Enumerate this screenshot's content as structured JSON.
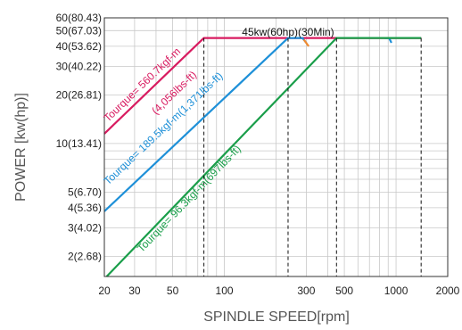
{
  "chart_data": {
    "type": "line",
    "xlabel": "SPINDLE SPEED[rpm]",
    "ylabel": "POWER [kw(hp)]",
    "x_scale": "log",
    "y_scale": "log",
    "xlim": [
      20,
      2000
    ],
    "ylim": [
      1.5,
      60
    ],
    "x_ticks": [
      {
        "value": 20,
        "label": "20"
      },
      {
        "value": 30,
        "label": "30"
      },
      {
        "value": 50,
        "label": "50"
      },
      {
        "value": 100,
        "label": "100"
      },
      {
        "value": 300,
        "label": "300"
      },
      {
        "value": 500,
        "label": "500"
      },
      {
        "value": 1000,
        "label": "1000"
      },
      {
        "value": 2000,
        "label": "2000"
      }
    ],
    "y_ticks": [
      {
        "value": 60,
        "label": "60(80.43)"
      },
      {
        "value": 50,
        "label": "50(67.03)"
      },
      {
        "value": 40,
        "label": "40(53.62)"
      },
      {
        "value": 30,
        "label": "30(40.22)"
      },
      {
        "value": 20,
        "label": "20(26.81)"
      },
      {
        "value": 10,
        "label": "10(13.41)"
      },
      {
        "value": 5,
        "label": "5(6.70)"
      },
      {
        "value": 4,
        "label": "4(5.36)"
      },
      {
        "value": 3,
        "label": "3(4.02)"
      },
      {
        "value": 2,
        "label": "2(2.68)"
      }
    ],
    "grid": true,
    "rated_power_label": "45kw(60hp)(30Min)",
    "series": [
      {
        "color": "#d81b60",
        "x": [
          20,
          76,
          1400
        ],
        "y": [
          11.5,
          45,
          45
        ]
      },
      {
        "color": "#1e90d8",
        "x": [
          20,
          235,
          285,
          300
        ],
        "y": [
          3.8,
          45,
          45,
          42
        ]
      },
      {
        "color": "#1e90d8",
        "x": [
          860,
          910,
          940
        ],
        "y": [
          45,
          45,
          42
        ]
      },
      {
        "color": "#f08a30",
        "x": [
          290,
          310
        ],
        "y": [
          44,
          40
        ]
      },
      {
        "color": "#1a9e4a",
        "x": [
          20,
          450,
          1400
        ],
        "y": [
          1.45,
          45,
          45
        ]
      }
    ],
    "vlines": [
      76,
      235,
      450,
      1400
    ],
    "annotations": [
      {
        "text": "Tourque= 560.7kgf-m",
        "color": "#d81b60",
        "x": 21,
        "y": 13.5
      },
      {
        "text": "(4,056lbs-ft)",
        "color": "#d81b60",
        "x": 40,
        "y": 15
      },
      {
        "text": "Tourque= 189.5kgf-m(1,371lbs-ft)",
        "color": "#1e90d8",
        "x": 21,
        "y": 5.5
      },
      {
        "text": "Tourque= 96.3kgf-m(697lbs-ft)",
        "color": "#1a9e4a",
        "x": 33,
        "y": 2.1
      }
    ]
  }
}
